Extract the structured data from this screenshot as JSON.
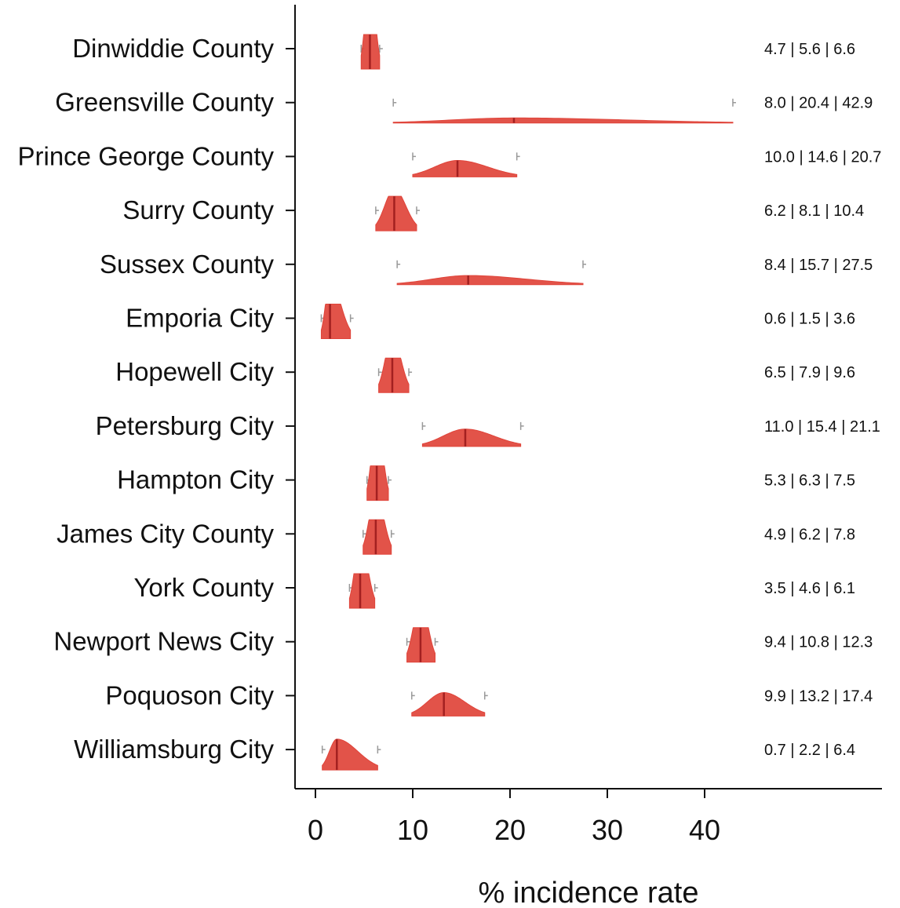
{
  "chart_data": {
    "type": "ridgeline",
    "title": "",
    "xlabel": "% incidence rate",
    "ylabel": "",
    "xlim": [
      -2,
      48
    ],
    "xticks": [
      0,
      10,
      20,
      30,
      40
    ],
    "grid": false,
    "colors": {
      "density": "#e0443a",
      "median": "#a32020",
      "ci_cap": "#999999",
      "axis": "#111111"
    },
    "categories": [
      "Dinwiddie County",
      "Greensville County",
      "Prince George County",
      "Surry County",
      "Sussex County",
      "Emporia City",
      "Hopewell City",
      "Petersburg City",
      "Hampton City",
      "James City County",
      "York County",
      "Newport News City",
      "Poquoson City",
      "Williamsburg City"
    ],
    "lower": [
      4.7,
      8.0,
      10.0,
      6.2,
      8.4,
      0.6,
      6.5,
      11.0,
      5.3,
      4.9,
      3.5,
      9.4,
      9.9,
      0.7
    ],
    "median": [
      5.6,
      20.4,
      14.6,
      8.1,
      15.7,
      1.5,
      7.9,
      15.4,
      6.3,
      6.2,
      4.6,
      10.8,
      13.2,
      2.2
    ],
    "upper": [
      6.6,
      42.9,
      20.7,
      10.4,
      27.5,
      3.6,
      9.6,
      21.1,
      7.5,
      7.8,
      6.1,
      12.3,
      17.4,
      6.4
    ],
    "value_labels": [
      "4.7 | 5.6 | 6.6",
      "8.0 | 20.4 | 42.9",
      "10.0 | 14.6 | 20.7",
      "6.2 | 8.1 | 10.4",
      "8.4 | 15.7 | 27.5",
      "0.6 | 1.5 | 3.6",
      "6.5 | 7.9 | 9.6",
      "11.0 | 15.4 | 21.1",
      "5.3 | 6.3 | 7.5",
      "4.9 | 6.2 | 7.8",
      "3.5 | 4.6 | 6.1",
      "9.4 | 10.8 | 12.3",
      "9.9 | 13.2 | 17.4",
      "0.7 | 2.2 | 6.4"
    ]
  }
}
